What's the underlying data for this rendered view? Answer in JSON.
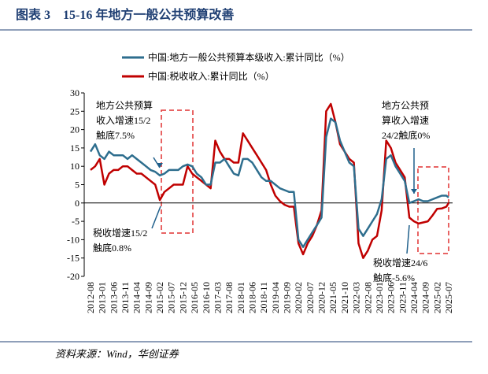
{
  "chart_data": {
    "type": "line",
    "title": "图表 3　15-16 年地方一般公共预算改善",
    "source": "资料来源：Wind，华创证券",
    "x": [
      "2012-08",
      "2012-10",
      "2012-12",
      "2013-02",
      "2013-04",
      "2013-06",
      "2013-08",
      "2013-10",
      "2013-12",
      "2014-02",
      "2014-04",
      "2014-06",
      "2014-08",
      "2014-10",
      "2014-12",
      "2015-02",
      "2015-04",
      "2015-06",
      "2015-08",
      "2015-10",
      "2015-12",
      "2016-02",
      "2016-04",
      "2016-06",
      "2016-08",
      "2016-10",
      "2016-12",
      "2017-02",
      "2017-04",
      "2017-06",
      "2017-08",
      "2017-10",
      "2017-12",
      "2018-02",
      "2018-04",
      "2018-06",
      "2018-08",
      "2018-10",
      "2018-12",
      "2019-02",
      "2019-04",
      "2019-06",
      "2019-08",
      "2019-10",
      "2019-12",
      "2020-02",
      "2020-04",
      "2020-06",
      "2020-08",
      "2020-10",
      "2020-12",
      "2021-02",
      "2021-04",
      "2021-06",
      "2021-08",
      "2021-10",
      "2021-12",
      "2022-02",
      "2022-04",
      "2022-06",
      "2022-08",
      "2022-10",
      "2022-12",
      "2023-02",
      "2023-04",
      "2023-06",
      "2023-08",
      "2023-10",
      "2023-12",
      "2024-02",
      "2024-04",
      "2024-06",
      "2024-08",
      "2024-10",
      "2024-12",
      "2025-02",
      "2025-04",
      "2025-06",
      "2025-07"
    ],
    "series": [
      {
        "name": "中国:地方一般公共预算本级收入:累计同比（%）",
        "color": "#2e6e8e",
        "values": [
          14,
          16,
          13,
          12,
          14,
          13,
          13,
          13,
          12,
          13,
          12,
          11,
          10,
          9,
          8.5,
          7.5,
          8,
          9,
          9,
          9,
          10,
          10.5,
          10,
          8,
          7,
          5,
          5,
          11,
          11,
          12,
          10,
          8,
          7.5,
          12,
          12,
          11,
          9,
          7,
          6,
          6,
          5,
          4,
          3.5,
          3,
          3,
          -10,
          -12,
          -10,
          -8,
          -6,
          -4,
          18,
          23,
          22,
          17,
          14,
          11,
          10,
          -7,
          -9,
          -7,
          -5,
          -3,
          1,
          12,
          13,
          10,
          8,
          6,
          0,
          0.5,
          1,
          0.5,
          0.5,
          1,
          1.5,
          2,
          2,
          1.5
        ]
      },
      {
        "name": "中国:税收收入:累计同比（%）",
        "color": "#c00000",
        "values": [
          9,
          10,
          12,
          5,
          8,
          9,
          9,
          10,
          10,
          9,
          8,
          8,
          7,
          6,
          5,
          0.8,
          3,
          4,
          5,
          5,
          5,
          10,
          8,
          7,
          6,
          5,
          4,
          17,
          14,
          12,
          12,
          11,
          11,
          19,
          17,
          15,
          13,
          11,
          9,
          5,
          2,
          0.5,
          -0.5,
          -1,
          -1,
          -11,
          -14,
          -11,
          -9,
          -6,
          -2,
          25,
          27,
          22,
          16,
          14,
          12,
          11,
          -11,
          -15,
          -13,
          -10,
          -9,
          -2,
          17,
          15,
          11,
          9,
          7,
          -4,
          -5,
          -5.6,
          -5.3,
          -5,
          -3.4,
          -1.6,
          -1.5,
          -1,
          0
        ]
      }
    ],
    "xlim": [
      "2012-08",
      "2025-07"
    ],
    "xticks": [
      "2012-08",
      "2013-01",
      "2013-06",
      "2013-11",
      "2014-04",
      "2014-09",
      "2015-02",
      "2015-07",
      "2015-12",
      "2016-05",
      "2016-10",
      "2017-03",
      "2017-08",
      "2018-01",
      "2018-06",
      "2018-11",
      "2019-04",
      "2019-09",
      "2020-02",
      "2020-07",
      "2020-12",
      "2021-05",
      "2021-10",
      "2022-03",
      "2022-08",
      "2023-01",
      "2023-06",
      "2023-11",
      "2024-04",
      "2024-09",
      "2025-02",
      "2025-07"
    ],
    "ylim": [
      -20,
      30
    ],
    "yticks": [
      -20,
      -15,
      -10,
      -5,
      0,
      5,
      10,
      15,
      20,
      25,
      30
    ],
    "annotations": [
      {
        "lines": [
          "地方公共预算",
          "收入增速15/2",
          "触底7.5%"
        ]
      },
      {
        "lines": [
          "税收增速15/2",
          "触底0.8%"
        ]
      },
      {
        "lines": [
          "地方公共预",
          "算收入增速",
          "24/2触底0%"
        ]
      },
      {
        "lines": [
          "税收增速24/6",
          "触底-5.6%"
        ]
      }
    ]
  }
}
